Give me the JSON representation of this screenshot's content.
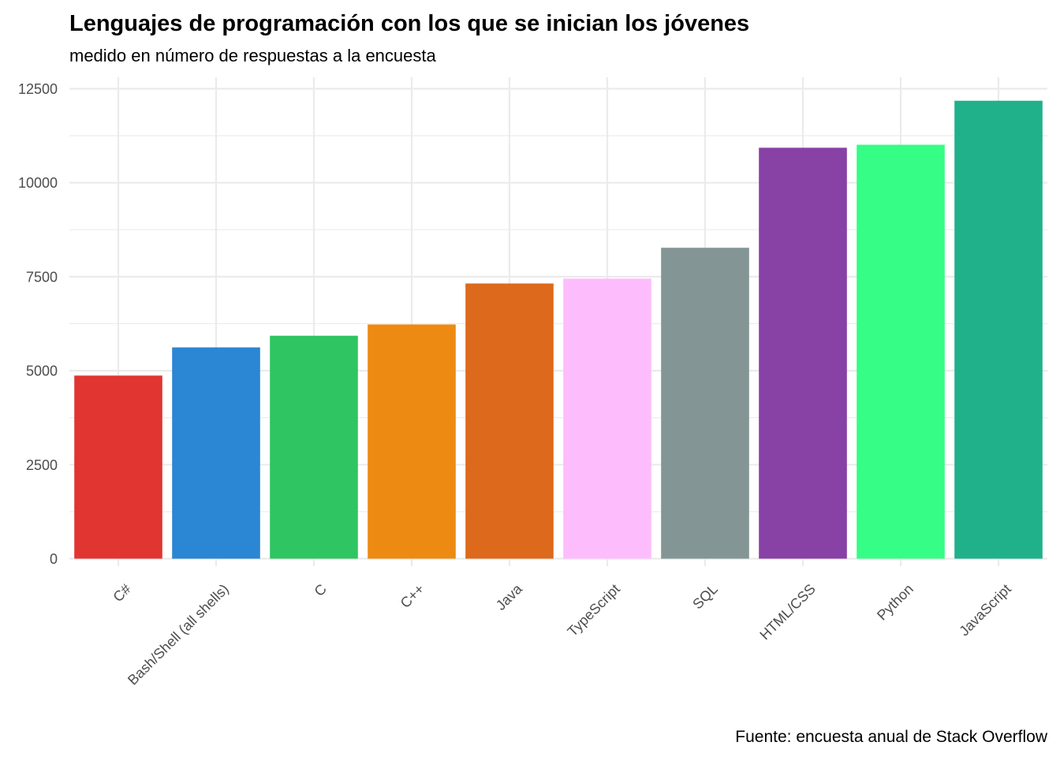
{
  "chart_data": {
    "type": "bar",
    "title": "Lenguajes de programación con los que se inician los jóvenes",
    "subtitle": "medido en número de respuestas a la encuesta",
    "caption": "Fuente: encuesta anual de Stack Overflow",
    "xlabel": "",
    "ylabel": "",
    "categories": [
      "C#",
      "Bash/Shell (all shells)",
      "C",
      "C++",
      "Java",
      "TypeScript",
      "SQL",
      "HTML/CSS",
      "Python",
      "JavaScript"
    ],
    "values": [
      4870,
      5620,
      5930,
      6230,
      7320,
      7450,
      8270,
      10930,
      11010,
      12180
    ],
    "colors": [
      "#e03531",
      "#2b86d3",
      "#2fc562",
      "#ed8a12",
      "#dd691c",
      "#fdbdfd",
      "#839594",
      "#8841a5",
      "#36fd85",
      "#20b18b"
    ],
    "ylim": [
      0,
      12500
    ],
    "yticks": [
      "0",
      "2500",
      "5000",
      "7500",
      "10000",
      "12500"
    ],
    "grid": true,
    "legend": "none"
  }
}
